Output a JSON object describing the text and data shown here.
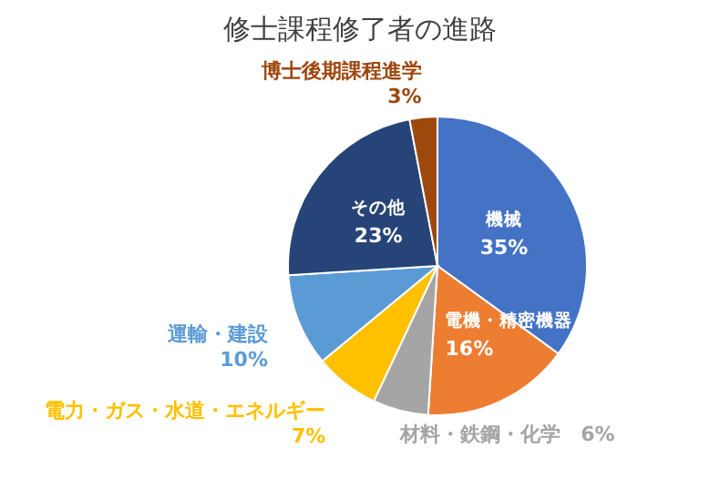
{
  "chart_data": {
    "type": "pie",
    "title": "修士課程修了者の進路",
    "categories": [
      "機械",
      "電機・精密機器",
      "材料・鉄鋼・化学",
      "電力・ガス・水道・エネルギー",
      "運輸・建設",
      "その他",
      "博士後期課程進学"
    ],
    "values": [
      35,
      16,
      6,
      7,
      10,
      23,
      3
    ],
    "colors": [
      "#4472c4",
      "#ed7d31",
      "#a5a5a5",
      "#ffc000",
      "#5b9bd5",
      "#264478",
      "#9e480e"
    ],
    "value_labels": [
      "35%",
      "16%",
      "6%",
      "7%",
      "10%",
      "23%",
      "3%"
    ]
  }
}
